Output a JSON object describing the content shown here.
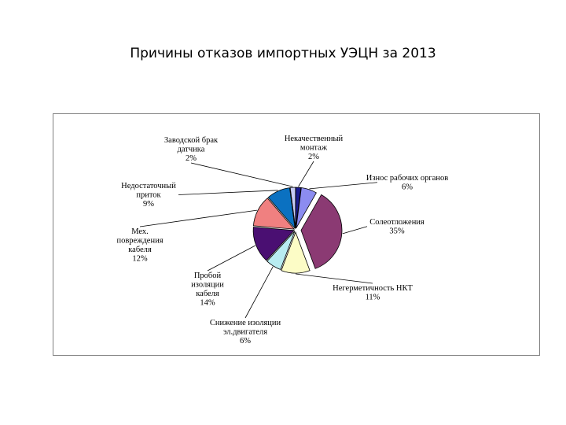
{
  "title": "Причины отказов импортных УЭЦН за 2013",
  "chart_data": {
    "type": "pie",
    "title": "Причины отказов импортных УЭЦН за 2013",
    "unit": "%",
    "slices": [
      {
        "label": [
          "Некачественный",
          "монтаж"
        ],
        "value": 2,
        "display": "2%",
        "color": "#1b1b8f"
      },
      {
        "label": [
          "Износ рабочих органов"
        ],
        "value": 6,
        "display": "6%",
        "color": "#8c8cf0"
      },
      {
        "label": [
          "Солеотложения"
        ],
        "value": 35,
        "display": "35%",
        "color": "#8b3a73"
      },
      {
        "label": [
          "Негерметичность НКТ"
        ],
        "value": 11,
        "display": "11%",
        "color": "#fcfcc6"
      },
      {
        "label": [
          "Снижение изоляции",
          "эл.двигателя"
        ],
        "value": 6,
        "display": "6%",
        "color": "#b8ecf1"
      },
      {
        "label": [
          "Пробой",
          "изоляции",
          "кабеля"
        ],
        "value": 14,
        "display": "14%",
        "color": "#4a0f72"
      },
      {
        "label": [
          "Мех.",
          "повреждения",
          "кабеля"
        ],
        "value": 12,
        "display": "12%",
        "color": "#f08080"
      },
      {
        "label": [
          "Недостаточный",
          "приток"
        ],
        "value": 9,
        "display": "9%",
        "color": "#0b71c1"
      },
      {
        "label": [
          "Заводской брак",
          "датчика"
        ],
        "value": 2,
        "display": "2%",
        "color": "#c7ccf5"
      }
    ]
  }
}
